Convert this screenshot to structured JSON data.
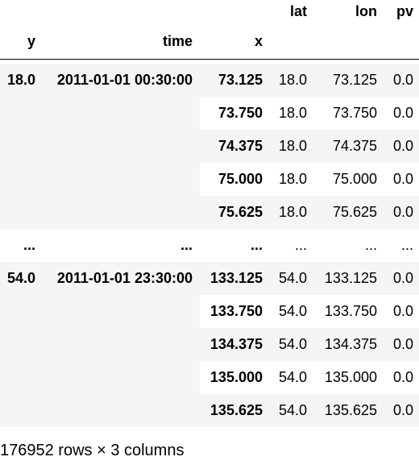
{
  "table": {
    "column_headers": [
      "lat",
      "lon",
      "pv"
    ],
    "index_names": [
      "y",
      "time",
      "x"
    ],
    "groups": [
      {
        "y": "18.0",
        "time": "2011-01-01 00:30:00",
        "rows": [
          {
            "x": "73.125",
            "lat": "18.0",
            "lon": "73.125",
            "pv": "0.0"
          },
          {
            "x": "73.750",
            "lat": "18.0",
            "lon": "73.750",
            "pv": "0.0"
          },
          {
            "x": "74.375",
            "lat": "18.0",
            "lon": "74.375",
            "pv": "0.0"
          },
          {
            "x": "75.000",
            "lat": "18.0",
            "lon": "75.000",
            "pv": "0.0"
          },
          {
            "x": "75.625",
            "lat": "18.0",
            "lon": "75.625",
            "pv": "0.0"
          }
        ]
      },
      {
        "y": "54.0",
        "time": "2011-01-01 23:30:00",
        "rows": [
          {
            "x": "133.125",
            "lat": "54.0",
            "lon": "133.125",
            "pv": "0.0"
          },
          {
            "x": "133.750",
            "lat": "54.0",
            "lon": "133.750",
            "pv": "0.0"
          },
          {
            "x": "134.375",
            "lat": "54.0",
            "lon": "134.375",
            "pv": "0.0"
          },
          {
            "x": "135.000",
            "lat": "54.0",
            "lon": "135.000",
            "pv": "0.0"
          },
          {
            "x": "135.625",
            "lat": "54.0",
            "lon": "135.625",
            "pv": "0.0"
          }
        ]
      }
    ],
    "ellipsis_row": {
      "y": "...",
      "time": "...",
      "x": "...",
      "lat": "...",
      "lon": "...",
      "pv": "..."
    }
  },
  "caption": "176952 rows × 3 columns"
}
